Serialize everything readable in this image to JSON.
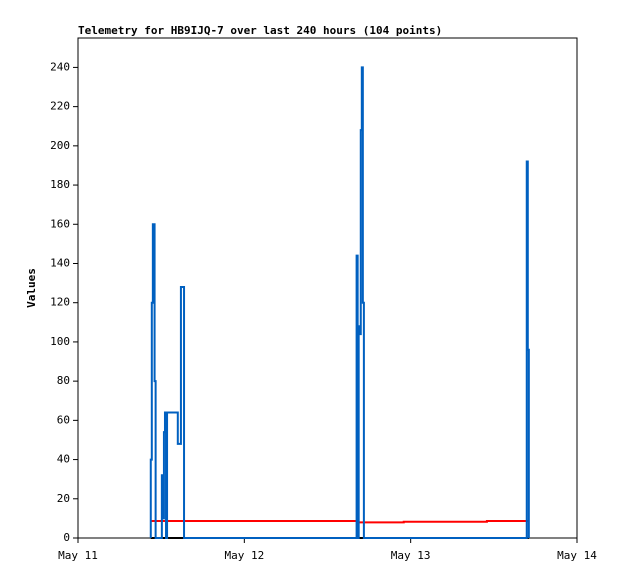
{
  "chart_data": {
    "type": "line",
    "title": "Telemetry for HB9IJQ-7 over last 240 hours (104 points)",
    "y_label": "Values",
    "xlim": [
      0,
      72
    ],
    "xticks": [
      {
        "value": 0,
        "label": "May 11"
      },
      {
        "value": 24,
        "label": "May 12"
      },
      {
        "value": 48,
        "label": "May 13"
      },
      {
        "value": 72,
        "label": "May 14"
      }
    ],
    "ylim": [
      0,
      255
    ],
    "yticks": [
      0,
      20,
      40,
      60,
      80,
      100,
      120,
      140,
      160,
      180,
      200,
      220,
      240
    ],
    "series": [
      {
        "color": "#000000",
        "x": [
          10.5,
          65.05
        ],
        "values": [
          0,
          0
        ]
      },
      {
        "color": "#ff0000",
        "x": [
          10.5,
          40.3,
          40.3,
          47,
          47,
          59,
          59,
          65.05
        ],
        "values": [
          8.7,
          8.7,
          8,
          8,
          8.3,
          8.3,
          8.7,
          8.7
        ]
      },
      {
        "color": "#0060c0",
        "x": [
          10.5,
          10.5,
          10.65,
          10.65,
          10.8,
          10.8,
          11.05,
          11.05,
          11.2,
          11.2,
          12.1,
          12.1,
          12.25,
          12.25,
          12.4,
          12.4,
          12.55,
          12.55,
          12.7,
          12.7,
          12.85,
          12.85,
          14.4,
          14.4,
          14.85,
          14.85,
          15.3,
          15.3,
          40.2,
          40.2,
          40.35,
          40.35,
          40.5,
          40.5,
          40.65,
          40.65,
          40.8,
          40.8,
          40.95,
          40.95,
          41.1,
          41.1,
          41.25,
          41.25,
          64.75,
          64.75,
          64.9,
          64.9,
          65.05,
          65.05
        ],
        "values": [
          0,
          40,
          40,
          120,
          120,
          160,
          160,
          80,
          80,
          0,
          0,
          32,
          32,
          10,
          10,
          54,
          54,
          64,
          64,
          0,
          0,
          64,
          64,
          48,
          48,
          128,
          128,
          0,
          0,
          144,
          144,
          0,
          0,
          108,
          108,
          104,
          104,
          208,
          208,
          240,
          240,
          120,
          120,
          0,
          0,
          192,
          192,
          96,
          96,
          0
        ]
      }
    ]
  }
}
